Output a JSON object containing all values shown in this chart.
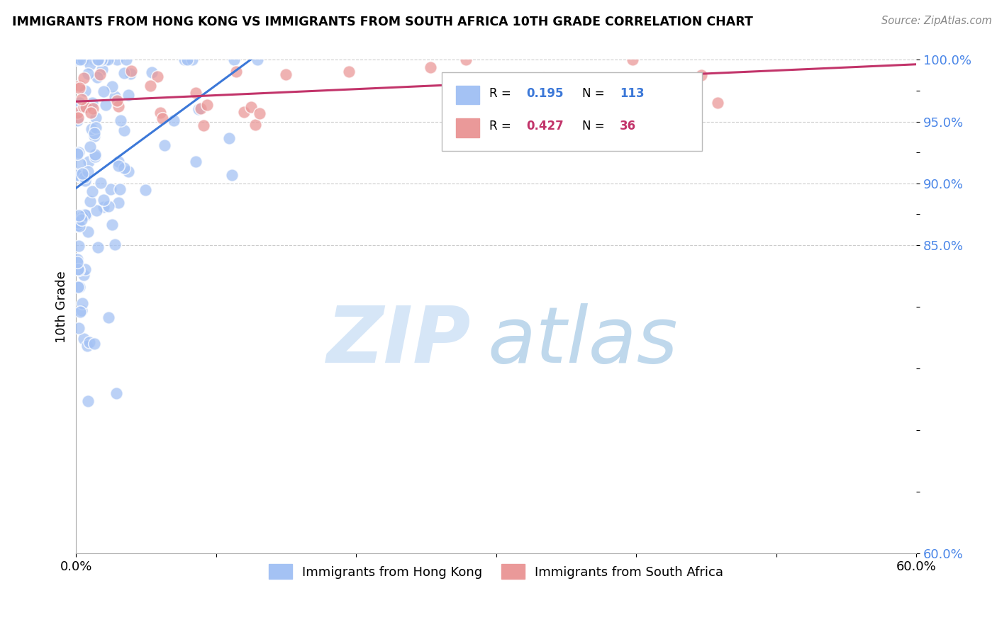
{
  "title": "IMMIGRANTS FROM HONG KONG VS IMMIGRANTS FROM SOUTH AFRICA 10TH GRADE CORRELATION CHART",
  "source": "Source: ZipAtlas.com",
  "ylabel": "10th Grade",
  "legend_label1": "Immigrants from Hong Kong",
  "legend_label2": "Immigrants from South Africa",
  "R1": 0.195,
  "N1": 113,
  "R2": 0.427,
  "N2": 36,
  "color1": "#a4c2f4",
  "color2": "#ea9999",
  "line_color1": "#3c78d8",
  "line_color2": "#c2346a",
  "tick_color": "#4a86e8",
  "xlim": [
    0.0,
    0.6
  ],
  "ylim": [
    0.6,
    1.0
  ],
  "watermark_zip": "ZIP",
  "watermark_atlas": "atlas",
  "watermark_color_zip": "#cce0f5",
  "watermark_color_atlas": "#b0cfe8"
}
